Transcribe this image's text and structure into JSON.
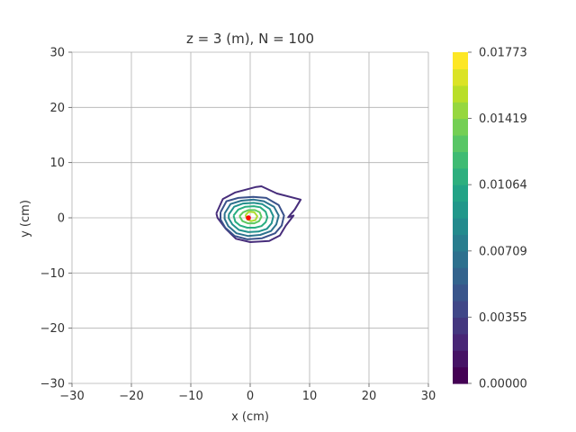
{
  "chart_data": {
    "type": "contour",
    "title": "z = 3 (m), N = 100",
    "xlabel": "x (cm)",
    "ylabel": "y (cm)",
    "xlim": [
      -30,
      30
    ],
    "ylim": [
      -30,
      30
    ],
    "xticks": [
      -30,
      -20,
      -10,
      0,
      10,
      20,
      30
    ],
    "yticks": [
      -30,
      -20,
      -10,
      0,
      10,
      20,
      30
    ],
    "xtick_labels": [
      "−30",
      "−20",
      "−10",
      "0",
      "10",
      "20",
      "30"
    ],
    "ytick_labels": [
      "−30",
      "−20",
      "−10",
      "0",
      "10",
      "20",
      "30"
    ],
    "grid": true,
    "colormap": "viridis",
    "colorbar": {
      "range": [
        0.0,
        0.01773
      ],
      "tick_values": [
        0.0,
        0.00355,
        0.00709,
        0.01064,
        0.01419,
        0.01773
      ],
      "tick_labels": [
        "0.00000",
        "0.00355",
        "0.00709",
        "0.01064",
        "0.01419",
        "0.01773"
      ],
      "levels": 20
    },
    "contours": [
      {
        "level": 0.00089,
        "color": "#472d7b",
        "points": [
          [
            -5.7,
            0.8
          ],
          [
            -4.6,
            3.4
          ],
          [
            -2.5,
            4.6
          ],
          [
            1.0,
            5.6
          ],
          [
            1.9,
            5.7
          ],
          [
            4.5,
            4.4
          ],
          [
            8.5,
            3.3
          ],
          [
            7.5,
            1.5
          ],
          [
            6.4,
            0.1
          ],
          [
            7.3,
            0.4
          ],
          [
            6.0,
            -1.4
          ],
          [
            5.0,
            -3.2
          ],
          [
            3.2,
            -4.2
          ],
          [
            0.0,
            -4.4
          ],
          [
            -2.4,
            -3.8
          ],
          [
            -4.1,
            -2.0
          ],
          [
            -5.5,
            0.0
          ],
          [
            -5.7,
            0.8
          ]
        ]
      },
      {
        "level": 0.00266,
        "color": "#3b528b",
        "points": [
          [
            -5.0,
            1.0
          ],
          [
            -4.0,
            3.0
          ],
          [
            -2.0,
            3.6
          ],
          [
            0.5,
            3.8
          ],
          [
            2.7,
            3.6
          ],
          [
            4.8,
            2.3
          ],
          [
            5.7,
            0.4
          ],
          [
            5.3,
            -1.4
          ],
          [
            4.2,
            -2.8
          ],
          [
            2.0,
            -3.7
          ],
          [
            -0.5,
            -3.9
          ],
          [
            -2.6,
            -3.3
          ],
          [
            -4.2,
            -1.8
          ],
          [
            -5.0,
            -0.3
          ],
          [
            -5.0,
            1.0
          ]
        ]
      },
      {
        "level": 0.00443,
        "color": "#2c728e",
        "points": [
          [
            -4.3,
            0.8
          ],
          [
            -3.3,
            2.5
          ],
          [
            -1.5,
            3.1
          ],
          [
            0.6,
            3.3
          ],
          [
            2.3,
            3.0
          ],
          [
            4.0,
            2.0
          ],
          [
            4.8,
            0.4
          ],
          [
            4.4,
            -1.2
          ],
          [
            3.5,
            -2.4
          ],
          [
            1.7,
            -3.1
          ],
          [
            -0.4,
            -3.3
          ],
          [
            -2.3,
            -2.8
          ],
          [
            -3.7,
            -1.5
          ],
          [
            -4.3,
            -0.2
          ],
          [
            -4.3,
            0.8
          ]
        ]
      },
      {
        "level": 0.0062,
        "color": "#21918c",
        "points": [
          [
            -3.6,
            0.6
          ],
          [
            -2.7,
            2.0
          ],
          [
            -1.2,
            2.6
          ],
          [
            0.6,
            2.7
          ],
          [
            2.0,
            2.5
          ],
          [
            3.3,
            1.6
          ],
          [
            3.9,
            0.3
          ],
          [
            3.6,
            -1.0
          ],
          [
            2.8,
            -2.0
          ],
          [
            1.4,
            -2.5
          ],
          [
            -0.3,
            -2.6
          ],
          [
            -1.9,
            -2.2
          ],
          [
            -3.0,
            -1.2
          ],
          [
            -3.6,
            -0.1
          ],
          [
            -3.6,
            0.6
          ]
        ]
      },
      {
        "level": 0.00798,
        "color": "#28ae80",
        "points": [
          [
            -2.8,
            0.4
          ],
          [
            -2.0,
            1.5
          ],
          [
            -0.8,
            2.0
          ],
          [
            0.6,
            2.1
          ],
          [
            1.7,
            1.9
          ],
          [
            2.6,
            1.1
          ],
          [
            2.9,
            0.1
          ],
          [
            2.6,
            -0.8
          ],
          [
            1.9,
            -1.5
          ],
          [
            0.8,
            -1.8
          ],
          [
            -0.5,
            -1.8
          ],
          [
            -1.7,
            -1.4
          ],
          [
            -2.5,
            -0.7
          ],
          [
            -2.8,
            0.4
          ]
        ]
      },
      {
        "level": 0.00975,
        "color": "#5ec962",
        "points": [
          [
            -1.8,
            0.3
          ],
          [
            -1.2,
            1.0
          ],
          [
            -0.3,
            1.4
          ],
          [
            0.8,
            1.4
          ],
          [
            1.6,
            1.0
          ],
          [
            1.9,
            0.2
          ],
          [
            1.5,
            -0.6
          ],
          [
            0.7,
            -1.0
          ],
          [
            -0.4,
            -1.0
          ],
          [
            -1.3,
            -0.6
          ],
          [
            -1.8,
            0.3
          ]
        ]
      },
      {
        "level": 0.01153,
        "color": "#addc30",
        "points": [
          [
            -0.8,
            0.5
          ],
          [
            -0.2,
            1.1
          ],
          [
            0.7,
            1.0
          ],
          [
            1.2,
            0.3
          ],
          [
            0.9,
            -0.4
          ],
          [
            0.2,
            -0.6
          ],
          [
            -0.5,
            -0.3
          ],
          [
            -0.8,
            0.5
          ]
        ]
      }
    ],
    "peak": {
      "x": -0.3,
      "y": 0.0,
      "color": "#ff0000"
    }
  }
}
